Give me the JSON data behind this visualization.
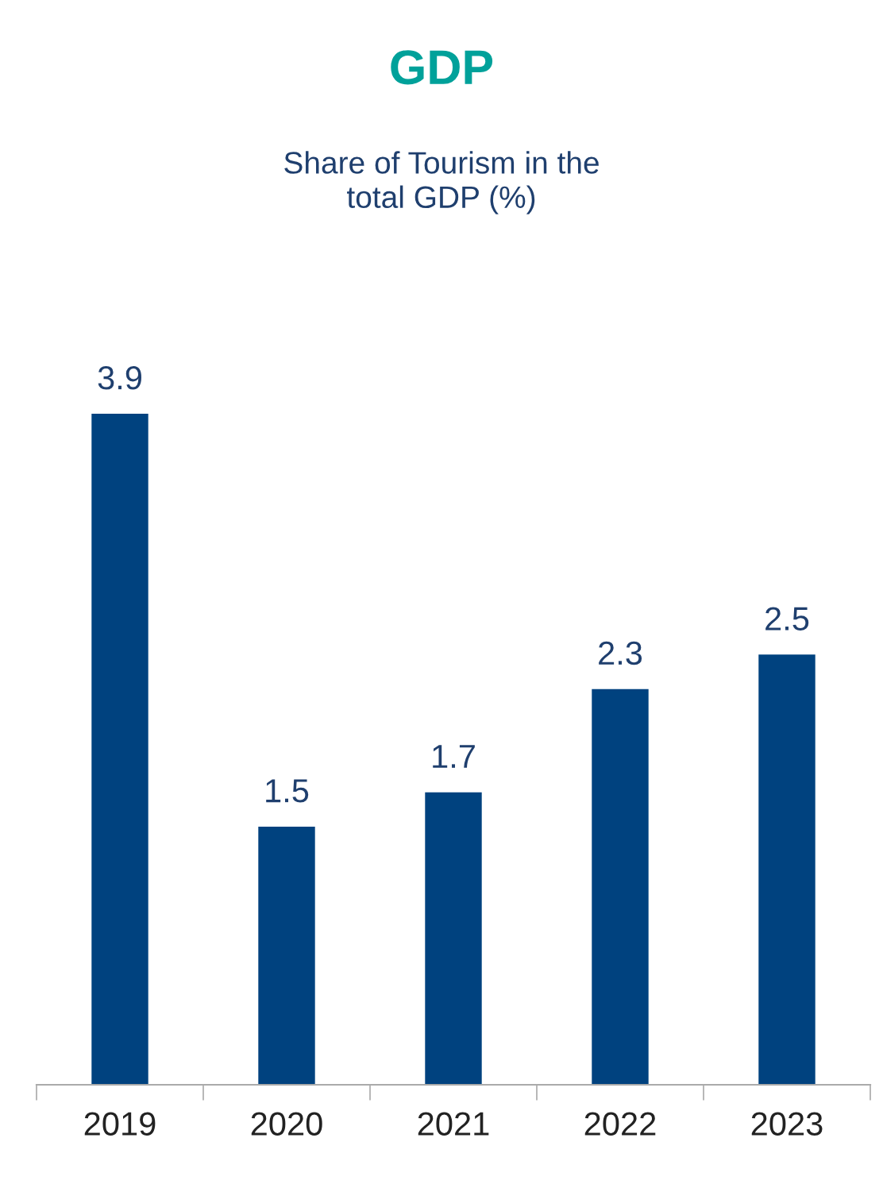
{
  "chart_data": {
    "type": "bar",
    "title": "GDP",
    "subtitle": "Share of Tourism in the\ntotal GDP (%)",
    "categories": [
      "2019",
      "2020",
      "2021",
      "2022",
      "2023"
    ],
    "values": [
      3.9,
      1.5,
      1.7,
      2.3,
      2.5
    ],
    "color": "#00427f",
    "data_labels": true,
    "grid": false,
    "legend": false
  }
}
